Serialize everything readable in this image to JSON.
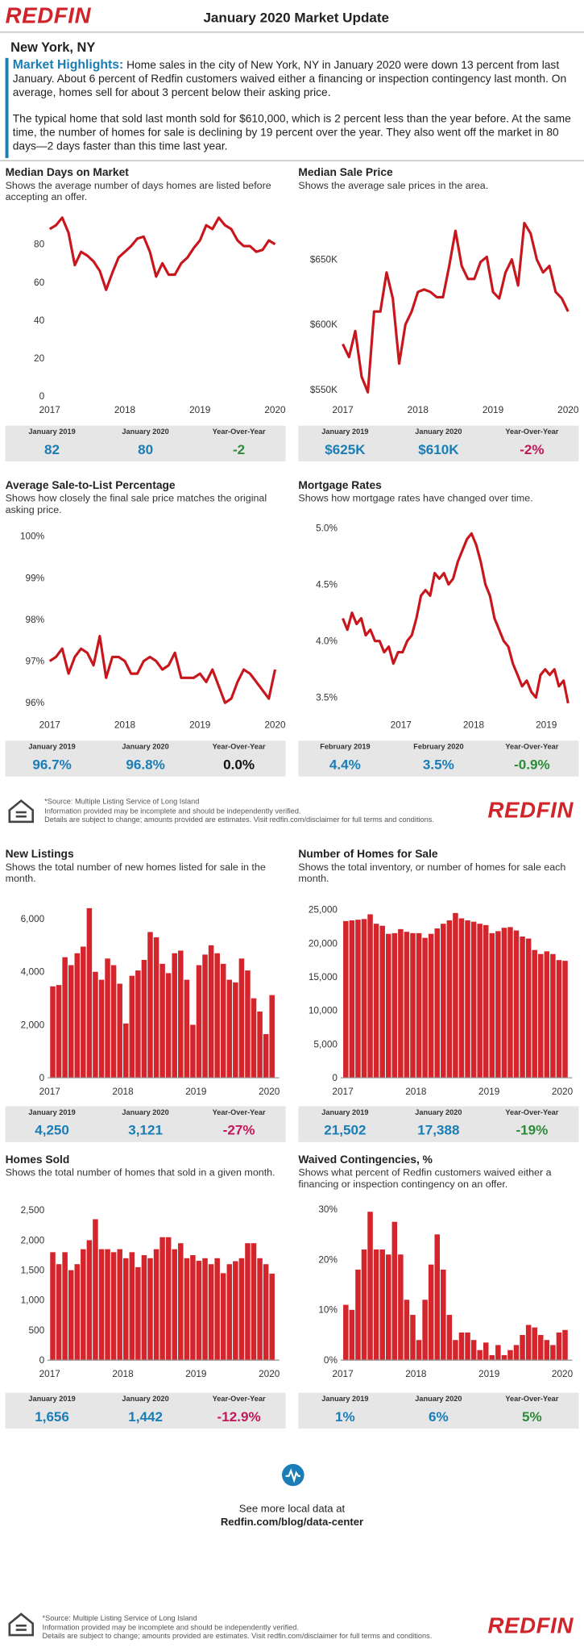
{
  "header": {
    "logo": "REDFIN",
    "title": "January 2020 Market Update",
    "location": "New York, NY"
  },
  "highlights": {
    "label": "Market Highlights:",
    "text1": "Home sales in the city of New York, NY in January 2020 were down 13 percent from last January. About 6 percent of Redfin customers waived either a financing or inspection contingency last month. On average, homes sell for about 3 percent below their asking price.",
    "text2": "The typical home that sold last month sold for $610,000, which is 2 percent less than the year before. At the same time, the number of homes for sale is declining by 19 percent over the year. They also went off the market in 80 days—2 days faster than this time last year."
  },
  "footer": {
    "source": "*Source: Multiple Listing Service of Long Island",
    "line2": "Information provided may be incomplete and should be independently verified.",
    "line3": "Details are subject to change; amounts provided are estimates. Visit redfin.com/disclaimer for full terms and conditions."
  },
  "more": {
    "line1": "See more local data at",
    "line2": "Redfin.com/blog/data-center"
  },
  "chart_data": [
    {
      "type": "line",
      "title": "Median Days on Market",
      "subtitle": "Shows the average number of days homes are listed before accepting an offer.",
      "color": "#c8161d",
      "grid": false,
      "xlim": [
        2017,
        2020
      ],
      "xticks": [
        2017,
        2018,
        2019,
        2020
      ],
      "ylim": [
        0,
        96
      ],
      "yticks": [
        0,
        20,
        40,
        60,
        80
      ],
      "values": [
        88,
        90,
        94,
        86,
        69,
        76,
        74,
        71,
        66,
        56,
        65,
        73,
        76,
        79,
        83,
        84,
        76,
        63,
        70,
        64,
        64,
        70,
        73,
        78,
        82,
        90,
        88,
        94,
        90,
        88,
        82,
        79,
        79,
        76,
        77,
        82,
        80
      ],
      "stats": [
        {
          "label": "January 2019",
          "value": "82",
          "color": "#1a7db6"
        },
        {
          "label": "January 2020",
          "value": "80",
          "color": "#1a7db6"
        },
        {
          "label": "Year-Over-Year",
          "value": "-2",
          "color": "#2e8b3a"
        }
      ]
    },
    {
      "type": "line",
      "title": "Median Sale Price",
      "subtitle": "Shows the average sale prices in the area.",
      "color": "#c8161d",
      "grid": false,
      "xlim": [
        2017,
        2020
      ],
      "xticks": [
        2017,
        2018,
        2019,
        2020
      ],
      "ylim": [
        545000,
        685000
      ],
      "yticks": [
        {
          "value": 550000,
          "label": "$550K"
        },
        {
          "value": 600000,
          "label": "$600K"
        },
        {
          "value": 650000,
          "label": "$650K"
        }
      ],
      "values": [
        585000,
        575000,
        595000,
        560000,
        548000,
        610000,
        610000,
        640000,
        620000,
        570000,
        600000,
        610000,
        625000,
        627000,
        625000,
        621000,
        621000,
        645000,
        672000,
        645000,
        635000,
        635000,
        648000,
        652000,
        625000,
        620000,
        640000,
        650000,
        630000,
        678000,
        670000,
        650000,
        640000,
        645000,
        625000,
        620000,
        610000
      ],
      "stats": [
        {
          "label": "January 2019",
          "value": "$625K",
          "color": "#1a7db6"
        },
        {
          "label": "January 2020",
          "value": "$610K",
          "color": "#1a7db6"
        },
        {
          "label": "Year-Over-Year",
          "value": "-2%",
          "color": "#c2185b"
        }
      ]
    },
    {
      "type": "line",
      "title": "Average Sale-to-List Percentage",
      "subtitle": "Shows how closely the final sale price matches the original asking price.",
      "color": "#c8161d",
      "grid": false,
      "xlim": [
        2017,
        2020
      ],
      "xticks": [
        2017,
        2018,
        2019,
        2020
      ],
      "ylim": [
        95.8,
        100.2
      ],
      "yticks": [
        {
          "value": 96,
          "label": "96%"
        },
        {
          "value": 97,
          "label": "97%"
        },
        {
          "value": 98,
          "label": "98%"
        },
        {
          "value": 99,
          "label": "99%"
        },
        {
          "value": 100,
          "label": "100%"
        }
      ],
      "values": [
        97.0,
        97.1,
        97.3,
        96.7,
        97.1,
        97.3,
        97.2,
        96.9,
        97.6,
        96.6,
        97.1,
        97.1,
        97.0,
        96.7,
        96.7,
        97.0,
        97.1,
        97.0,
        96.8,
        96.9,
        97.2,
        96.6,
        96.6,
        96.6,
        96.7,
        96.5,
        96.8,
        96.4,
        96.0,
        96.1,
        96.5,
        96.8,
        96.7,
        96.5,
        96.3,
        96.1,
        96.8
      ],
      "stats": [
        {
          "label": "January 2019",
          "value": "96.7%",
          "color": "#1a7db6"
        },
        {
          "label": "January 2020",
          "value": "96.8%",
          "color": "#1a7db6"
        },
        {
          "label": "Year-Over-Year",
          "value": "0.0%",
          "color": "#111111"
        }
      ]
    },
    {
      "type": "line",
      "title": "Mortgage Rates",
      "subtitle": "Shows how mortgage rates have changed over time.",
      "color": "#c8161d",
      "grid": false,
      "xlim": [
        2016.2,
        2019.3
      ],
      "xticks": [
        2017,
        2018,
        2019
      ],
      "ylim": [
        3.38,
        5.0
      ],
      "yticks": [
        {
          "value": 3.5,
          "label": "3.5%"
        },
        {
          "value": 4.0,
          "label": "4.0%"
        },
        {
          "value": 4.5,
          "label": "4.5%"
        },
        {
          "value": 5.0,
          "label": "5.0%"
        }
      ],
      "values": [
        4.2,
        4.1,
        4.25,
        4.15,
        4.2,
        4.05,
        4.1,
        4.0,
        4.0,
        3.9,
        3.95,
        3.8,
        3.9,
        3.9,
        4.0,
        4.05,
        4.2,
        4.4,
        4.45,
        4.4,
        4.6,
        4.55,
        4.6,
        4.5,
        4.55,
        4.7,
        4.8,
        4.9,
        4.95,
        4.85,
        4.7,
        4.5,
        4.4,
        4.2,
        4.1,
        4.0,
        3.95,
        3.8,
        3.7,
        3.6,
        3.65,
        3.55,
        3.5,
        3.7,
        3.75,
        3.7,
        3.75,
        3.6,
        3.65,
        3.45
      ],
      "stats": [
        {
          "label": "February 2019",
          "value": "4.4%",
          "color": "#1a7db6"
        },
        {
          "label": "February 2020",
          "value": "3.5%",
          "color": "#1a7db6"
        },
        {
          "label": "Year-Over-Year",
          "value": "-0.9%",
          "color": "#2e8b3a"
        }
      ]
    },
    {
      "type": "bar",
      "title": "New Listings",
      "subtitle": "Shows the total number of new homes listed for sale in the month.",
      "color": "#d3252b",
      "grid": false,
      "xlim": [
        2017,
        2020.08
      ],
      "xticks": [
        2017,
        2018,
        2019,
        2020
      ],
      "ylim": [
        0,
        6600
      ],
      "yticks": [
        0,
        {
          "value": 2000,
          "label": "2,000"
        },
        {
          "value": 4000,
          "label": "4,000"
        },
        {
          "value": 6000,
          "label": "6,000"
        }
      ],
      "values": [
        3450,
        3500,
        4550,
        4250,
        4700,
        4950,
        6400,
        4000,
        3700,
        4500,
        4250,
        3550,
        2050,
        3850,
        4050,
        4450,
        5500,
        5300,
        4300,
        3950,
        4700,
        4800,
        3700,
        2000,
        4250,
        4650,
        5000,
        4700,
        4300,
        3700,
        3600,
        4500,
        4050,
        3000,
        2500,
        1650,
        3121
      ],
      "stats": [
        {
          "label": "January 2019",
          "value": "4,250",
          "color": "#1a7db6"
        },
        {
          "label": "January 2020",
          "value": "3,121",
          "color": "#1a7db6"
        },
        {
          "label": "Year-Over-Year",
          "value": "-27%",
          "color": "#c2185b"
        }
      ]
    },
    {
      "type": "bar",
      "title": "Number of Homes for Sale",
      "subtitle": "Shows the total inventory, or number of homes for sale each month.",
      "color": "#d3252b",
      "grid": false,
      "xlim": [
        2017,
        2020.08
      ],
      "xticks": [
        2017,
        2018,
        2019,
        2020
      ],
      "ylim": [
        0,
        26000
      ],
      "yticks": [
        0,
        {
          "value": 5000,
          "label": "5,000"
        },
        {
          "value": 10000,
          "label": "10,000"
        },
        {
          "value": 15000,
          "label": "15,000"
        },
        {
          "value": 20000,
          "label": "20,000"
        },
        {
          "value": 25000,
          "label": "25,000"
        }
      ],
      "values": [
        23300,
        23400,
        23500,
        23600,
        24300,
        22900,
        22600,
        21400,
        21500,
        22100,
        21700,
        21500,
        21500,
        20800,
        21400,
        22200,
        22900,
        23400,
        24500,
        23700,
        23400,
        23200,
        22900,
        22700,
        21502,
        21800,
        22300,
        22400,
        21900,
        21000,
        20700,
        19000,
        18400,
        18800,
        18400,
        17500,
        17388
      ],
      "stats": [
        {
          "label": "January 2019",
          "value": "21,502",
          "color": "#1a7db6"
        },
        {
          "label": "January 2020",
          "value": "17,388",
          "color": "#1a7db6"
        },
        {
          "label": "Year-Over-Year",
          "value": "-19%",
          "color": "#2e8b3a"
        }
      ]
    },
    {
      "type": "bar",
      "title": "Homes Sold",
      "subtitle": "Shows the total number of homes that sold in a given month.",
      "color": "#d3252b",
      "grid": false,
      "xlim": [
        2017,
        2020.08
      ],
      "xticks": [
        2017,
        2018,
        2019,
        2020
      ],
      "ylim": [
        0,
        2600
      ],
      "yticks": [
        0,
        500,
        {
          "value": 1000,
          "label": "1,000"
        },
        {
          "value": 1500,
          "label": "1,500"
        },
        {
          "value": 2000,
          "label": "2,000"
        },
        {
          "value": 2500,
          "label": "2,500"
        }
      ],
      "values": [
        1800,
        1600,
        1800,
        1500,
        1600,
        1850,
        2000,
        2350,
        1850,
        1850,
        1800,
        1850,
        1700,
        1800,
        1550,
        1750,
        1700,
        1850,
        2050,
        2050,
        1850,
        1950,
        1700,
        1750,
        1656,
        1700,
        1600,
        1700,
        1450,
        1600,
        1650,
        1700,
        1950,
        1950,
        1700,
        1600,
        1442
      ],
      "stats": [
        {
          "label": "January 2019",
          "value": "1,656",
          "color": "#1a7db6"
        },
        {
          "label": "January 2020",
          "value": "1,442",
          "color": "#1a7db6"
        },
        {
          "label": "Year-Over-Year",
          "value": "-12.9%",
          "color": "#c2185b"
        }
      ]
    },
    {
      "type": "bar",
      "title": "Waived Contingencies, %",
      "subtitle": "Shows what percent of Redfin customers waived either a financing or inspection contingency on an offer.",
      "color": "#d3252b",
      "grid": false,
      "xlim": [
        2017,
        2020.08
      ],
      "xticks": [
        2017,
        2018,
        2019,
        2020
      ],
      "ylim": [
        0,
        31
      ],
      "yticks": [
        {
          "value": 0,
          "label": "0%"
        },
        {
          "value": 10,
          "label": "10%"
        },
        {
          "value": 20,
          "label": "20%"
        },
        {
          "value": 30,
          "label": "30%"
        }
      ],
      "values": [
        11,
        10,
        18,
        22,
        29.5,
        22,
        22,
        21,
        27.5,
        21,
        12,
        9,
        4,
        12,
        19,
        25,
        18,
        9,
        4,
        5.5,
        5.5,
        4,
        2,
        3.5,
        1,
        3,
        1,
        2,
        3,
        5,
        7,
        6.5,
        5,
        4,
        3,
        5.5,
        6
      ],
      "stats": [
        {
          "label": "January 2019",
          "value": "1%",
          "color": "#1a7db6"
        },
        {
          "label": "January 2020",
          "value": "6%",
          "color": "#1a7db6"
        },
        {
          "label": "Year-Over-Year",
          "value": "5%",
          "color": "#2e8b3a"
        }
      ]
    }
  ]
}
